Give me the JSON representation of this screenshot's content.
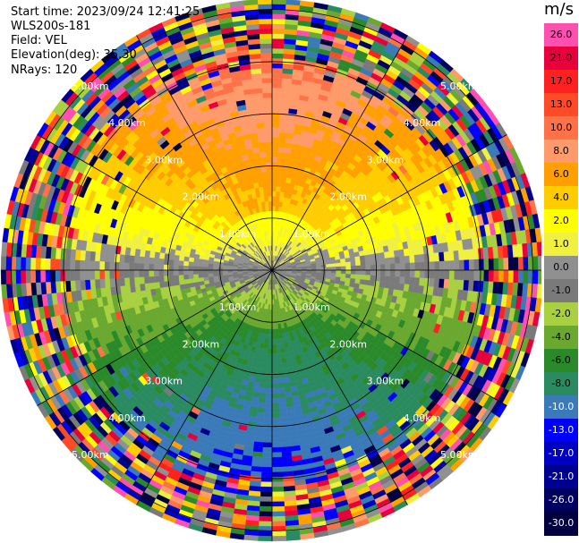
{
  "header": {
    "start_time": "Start time: 2023/09/24 12:41:25",
    "instrument": "WLS200s-181",
    "field": "Field: VEL",
    "elevation": "Elevation(deg): 35.30",
    "nrays": "NRays: 120"
  },
  "colorbar": {
    "unit": "m/s",
    "labels": [
      "26.0",
      "21.0",
      "17.0",
      "13.0",
      "10.0",
      "8.0",
      "6.0",
      "4.0",
      "2.0",
      "1.0",
      "0.0",
      "-1.0",
      "-2.0",
      "-4.0",
      "-6.0",
      "-8.0",
      "-10.0",
      "-13.0",
      "-17.0",
      "-21.0",
      "-26.0",
      "-30.0"
    ],
    "colors": [
      "#ff4fb0",
      "#e8003c",
      "#ff2020",
      "#ff4a28",
      "#ff7248",
      "#ff9a6a",
      "#ffa000",
      "#ffcc00",
      "#ffff00",
      "#f0f040",
      "#909090",
      "#7a7a7a",
      "#a8d040",
      "#6aa830",
      "#2a8a2a",
      "#2a8a60",
      "#3a7ab8",
      "#0000ff",
      "#0000c0",
      "#000090",
      "#000060",
      "#000040"
    ]
  },
  "chart_data": {
    "type": "ppi",
    "field": "VEL",
    "unit": "m/s",
    "nrays": 120,
    "elevation_deg": 35.3,
    "range_rings_km": [
      "1.00km",
      "2.00km",
      "3.00km",
      "4.00km",
      "5.00km"
    ],
    "max_range_km": 5.2,
    "colorbar_min": -30.0,
    "colorbar_max": 26.0
  }
}
